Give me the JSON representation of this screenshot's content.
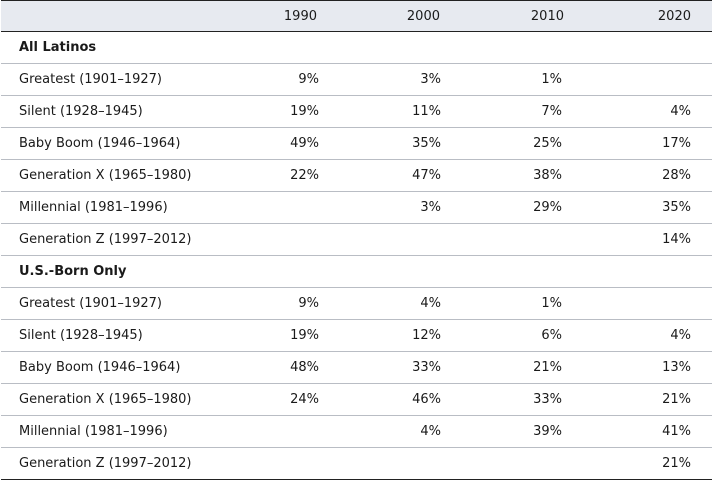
{
  "table": {
    "headers": [
      "",
      "1990",
      "2000",
      "2010",
      "2020"
    ],
    "sections": [
      {
        "title": "All Latinos",
        "rows": [
          {
            "label": "Greatest (1901–1927)",
            "values": [
              "9%",
              "3%",
              "1%",
              ""
            ]
          },
          {
            "label": "Silent (1928–1945)",
            "values": [
              "19%",
              "11%",
              "7%",
              "4%"
            ]
          },
          {
            "label": "Baby Boom (1946–1964)",
            "values": [
              "49%",
              "35%",
              "25%",
              "17%"
            ]
          },
          {
            "label": "Generation X (1965–1980)",
            "values": [
              "22%",
              "47%",
              "38%",
              "28%"
            ]
          },
          {
            "label": "Millennial (1981–1996)",
            "values": [
              "",
              "3%",
              "29%",
              "35%"
            ]
          },
          {
            "label": "Generation Z (1997–2012)",
            "values": [
              "",
              "",
              "",
              "14%"
            ]
          }
        ]
      },
      {
        "title": "U.S.-Born Only",
        "rows": [
          {
            "label": "Greatest (1901–1927)",
            "values": [
              "9%",
              "4%",
              "1%",
              ""
            ]
          },
          {
            "label": "Silent (1928–1945)",
            "values": [
              "19%",
              "12%",
              "6%",
              "4%"
            ]
          },
          {
            "label": "Baby Boom (1946–1964)",
            "values": [
              "48%",
              "33%",
              "21%",
              "13%"
            ]
          },
          {
            "label": "Generation X (1965–1980)",
            "values": [
              "24%",
              "46%",
              "33%",
              "21%"
            ]
          },
          {
            "label": "Millennial (1981–1996)",
            "values": [
              "",
              "4%",
              "39%",
              "41%"
            ]
          },
          {
            "label": "Generation Z (1997–2012)",
            "values": [
              "",
              "",
              "",
              "21%"
            ]
          }
        ]
      }
    ]
  }
}
